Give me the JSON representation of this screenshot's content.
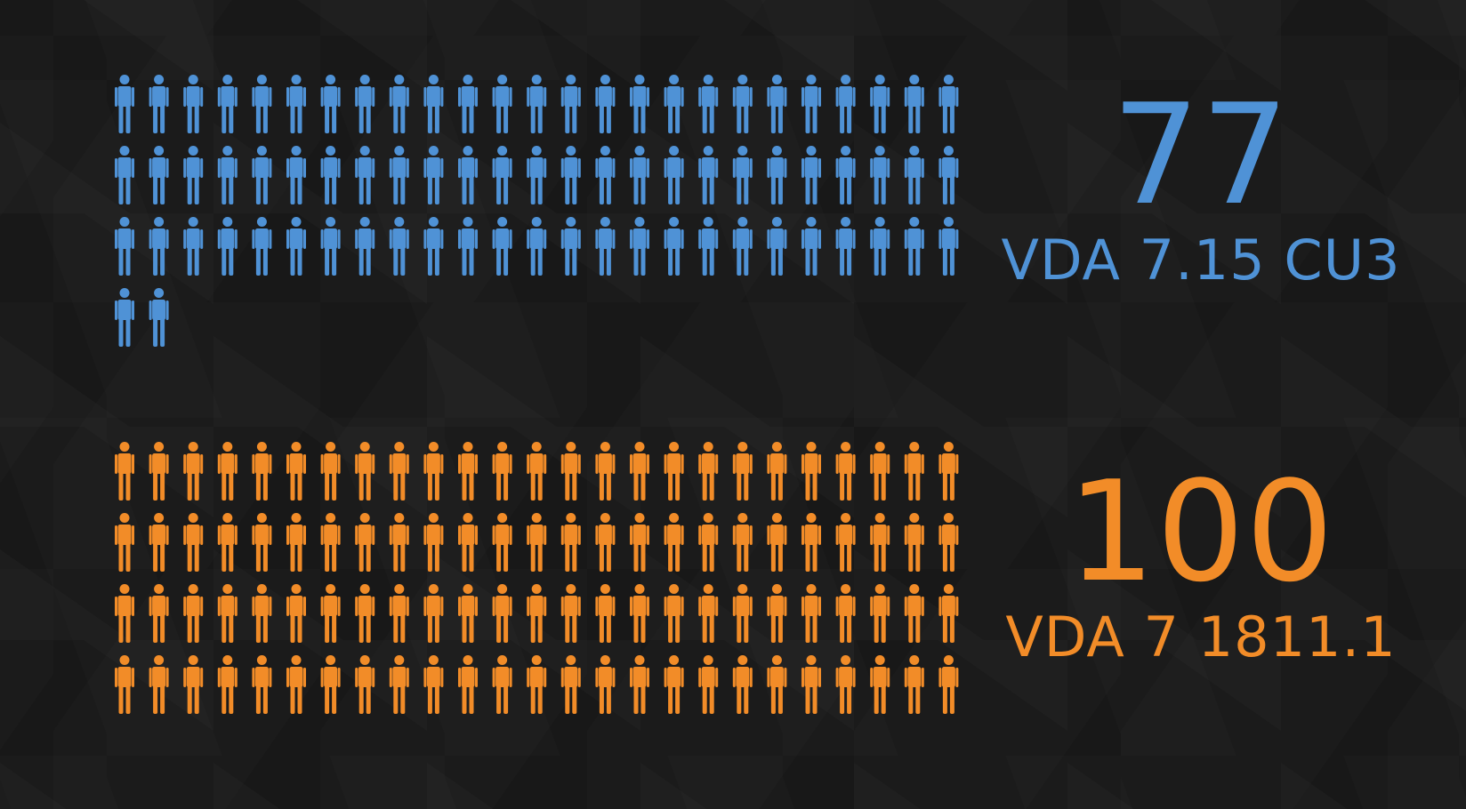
{
  "chart_data": {
    "type": "pictogram",
    "icon": "person-icon",
    "icons_per_row": 25,
    "series": [
      {
        "name": "VDA 7.15 CU3",
        "value": 77,
        "display_value": "77",
        "color": "#4f92d6"
      },
      {
        "name": "VDA 7 1811.1",
        "value": 100,
        "display_value": "100",
        "color": "#f28c28"
      }
    ]
  }
}
